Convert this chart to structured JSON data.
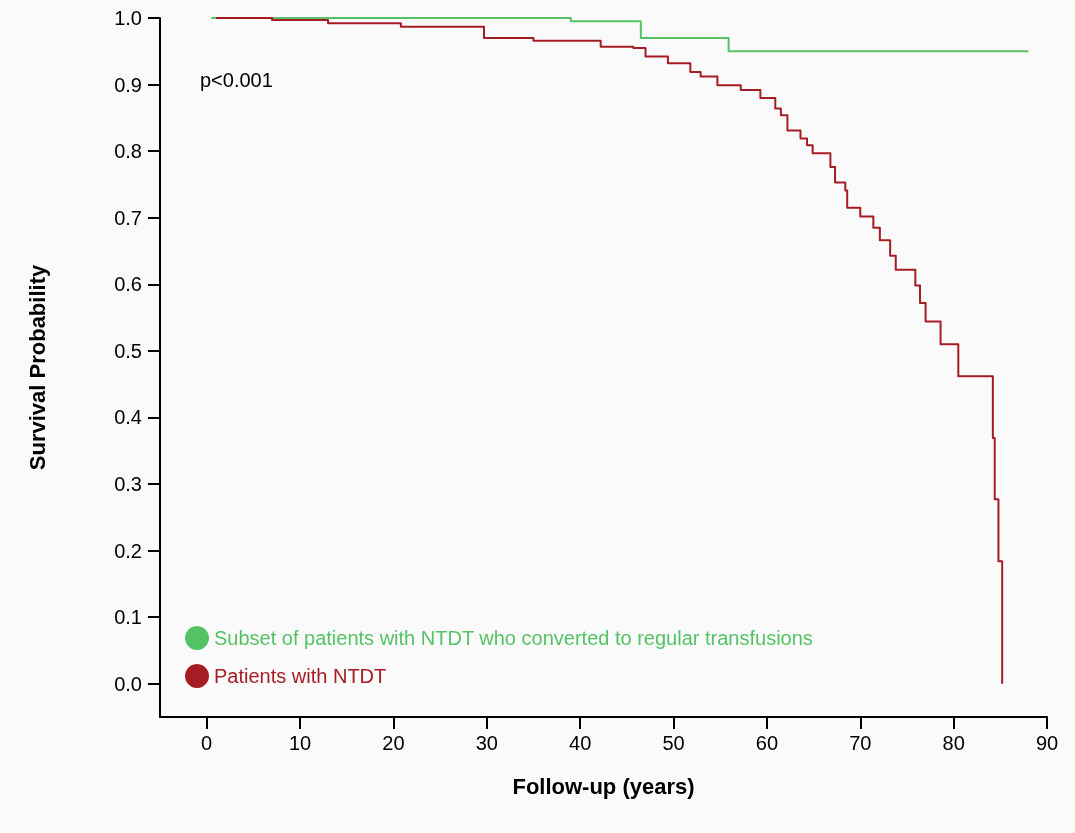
{
  "chart_data": {
    "type": "step",
    "xlabel": "Follow-up (years)",
    "ylabel": "Survival Probability",
    "annotations": [
      "p<0.001"
    ],
    "xlim": [
      -5,
      90
    ],
    "xticks": [
      0,
      10,
      20,
      30,
      40,
      50,
      60,
      70,
      80,
      90
    ],
    "ylim": [
      -0.05,
      1.0
    ],
    "yticks": [
      {
        "value": 0,
        "label": "0.0"
      },
      {
        "value": 0.1,
        "label": "0.1"
      },
      {
        "value": 0.2,
        "label": "0.2"
      },
      {
        "value": 0.3,
        "label": "0.3"
      },
      {
        "value": 0.4,
        "label": "0.4"
      },
      {
        "value": 0.5,
        "label": "0.5"
      },
      {
        "value": 0.6,
        "label": "0.6"
      },
      {
        "value": 0.7,
        "label": "0.7"
      },
      {
        "value": 0.8,
        "label": "0.8"
      },
      {
        "value": 0.9,
        "label": "0.9"
      },
      {
        "value": 1,
        "label": "1.0"
      }
    ],
    "legend": "bottom left",
    "grid": false,
    "series": [
      {
        "name": "Subset of patients with NTDT who converted to regular transfusions",
        "color": "#55c266",
        "x": [
          0.5,
          39,
          46.5,
          55.9,
          88
        ],
        "values": [
          1.0,
          0.995,
          0.97,
          0.95,
          0.95
        ]
      },
      {
        "name": "Patients with NTDT",
        "color": "#a61c24",
        "x": [
          1,
          7,
          13,
          20.8,
          29.7,
          35,
          42.2,
          45.7,
          47,
          49.4,
          51.8,
          52.9,
          54.7,
          57.2,
          59.3,
          60.9,
          61.5,
          62.2,
          63.6,
          64.3,
          64.9,
          66.8,
          67.3,
          68.4,
          68.6,
          70,
          71.4,
          72.1,
          73.2,
          73.8,
          75.9,
          76.4,
          77,
          78.6,
          80.5,
          84.2,
          84.4,
          84.8,
          85.2
        ],
        "values": [
          1.0,
          0.997,
          0.992,
          0.987,
          0.97,
          0.966,
          0.957,
          0.955,
          0.942,
          0.932,
          0.919,
          0.912,
          0.899,
          0.892,
          0.88,
          0.864,
          0.854,
          0.831,
          0.819,
          0.809,
          0.797,
          0.776,
          0.753,
          0.741,
          0.715,
          0.702,
          0.685,
          0.666,
          0.643,
          0.622,
          0.598,
          0.572,
          0.544,
          0.51,
          0.462,
          0.369,
          0.277,
          0.184,
          0
        ]
      }
    ]
  }
}
